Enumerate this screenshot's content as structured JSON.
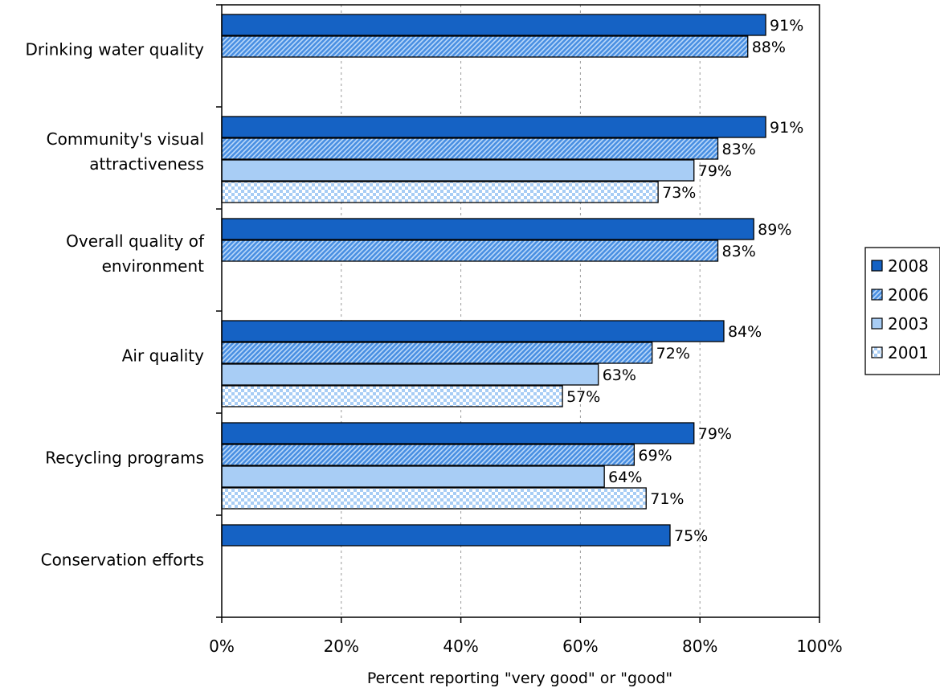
{
  "chart_data": {
    "type": "bar",
    "orientation": "horizontal",
    "title": "",
    "xlabel": "Percent reporting \"very good\" or \"good\"",
    "ylabel": "",
    "xlim": [
      0,
      100
    ],
    "x_ticks": [
      0,
      20,
      40,
      60,
      80,
      100
    ],
    "x_tick_labels": [
      "0%",
      "20%",
      "40%",
      "60%",
      "80%",
      "100%"
    ],
    "grid": "vertical dashed",
    "legend_position": "right",
    "categories": [
      [
        "Drinking water quality"
      ],
      [
        "Community's visual",
        "attractiveness"
      ],
      [
        "Overall quality of",
        "environment"
      ],
      [
        "Air quality"
      ],
      [
        "Recycling programs"
      ],
      [
        "Conservation efforts"
      ]
    ],
    "series": [
      {
        "name": "2008",
        "color": "#1562c4",
        "pattern": "solid",
        "values": [
          91,
          91,
          89,
          84,
          79,
          75
        ]
      },
      {
        "name": "2006",
        "color": "#4a90e2",
        "pattern": "diagonal-hatch",
        "values": [
          88,
          83,
          83,
          72,
          69,
          null
        ]
      },
      {
        "name": "2003",
        "color": "#a8cdf5",
        "pattern": "solid",
        "values": [
          null,
          79,
          null,
          63,
          64,
          null
        ]
      },
      {
        "name": "2001",
        "color": "#a8cdf5",
        "pattern": "checkerboard",
        "values": [
          null,
          73,
          null,
          57,
          71,
          null
        ]
      }
    ],
    "value_suffix": "%"
  }
}
